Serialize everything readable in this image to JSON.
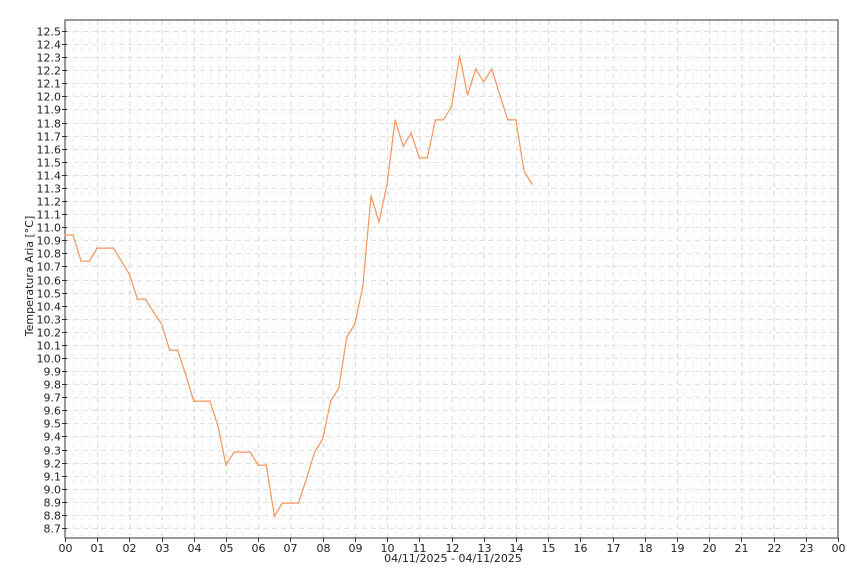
{
  "chart_data": {
    "type": "line",
    "title": "",
    "xlabel": "04/11/2025 - 04/11/2025",
    "ylabel": "Temperatura Aria [°C]",
    "ylim": [
      8.62,
      12.58
    ],
    "xlim": [
      "00:00",
      "24:00"
    ],
    "grid": true,
    "line_color": "#f5945c",
    "y_ticks": [
      "12.5",
      "12.4",
      "12.3",
      "12.2",
      "12.1",
      "12.0",
      "11.9",
      "11.8",
      "11.7",
      "11.6",
      "11.5",
      "11.4",
      "11.3",
      "11.2",
      "11.1",
      "11.0",
      "10.9",
      "10.8",
      "10.7",
      "10.6",
      "10.5",
      "10.4",
      "10.3",
      "10.2",
      "10.1",
      "10.0",
      "9.9",
      "9.8",
      "9.7",
      "9.6",
      "9.5",
      "9.4",
      "9.3",
      "9.2",
      "9.1",
      "9.0",
      "8.9",
      "8.8",
      "8.7"
    ],
    "x_ticks": [
      "00",
      "01",
      "02",
      "03",
      "04",
      "05",
      "06",
      "07",
      "08",
      "09",
      "10",
      "11",
      "12",
      "13",
      "14",
      "15",
      "16",
      "17",
      "18",
      "19",
      "20",
      "21",
      "22",
      "23",
      "00"
    ],
    "series": [
      {
        "x": [
          "00:00",
          "00:15",
          "00:30",
          "00:45",
          "01:00",
          "01:15",
          "01:30",
          "01:45",
          "02:00",
          "02:15",
          "02:30",
          "02:45",
          "03:00",
          "03:15",
          "03:30",
          "03:45",
          "04:00",
          "04:15",
          "04:30",
          "04:45",
          "05:00",
          "05:15",
          "05:30",
          "05:45",
          "06:00",
          "06:15",
          "06:30",
          "06:45",
          "07:00",
          "07:15",
          "07:30",
          "07:45",
          "08:00",
          "08:15",
          "08:30",
          "08:45",
          "09:00",
          "09:15",
          "09:30",
          "09:45",
          "10:00",
          "10:15",
          "10:30",
          "10:45",
          "11:00",
          "11:15",
          "11:30",
          "11:45",
          "12:00",
          "12:15",
          "12:30",
          "12:45",
          "13:00",
          "13:15",
          "13:30",
          "13:45",
          "14:00",
          "14:15",
          "14:30"
        ],
        "y": [
          10.94,
          10.94,
          10.74,
          10.74,
          10.84,
          10.84,
          10.84,
          10.74,
          10.64,
          10.45,
          10.45,
          10.35,
          10.26,
          10.06,
          10.06,
          9.87,
          9.67,
          9.67,
          9.67,
          9.48,
          9.18,
          9.28,
          9.28,
          9.28,
          9.18,
          9.18,
          8.79,
          8.89,
          8.89,
          8.89,
          9.08,
          9.28,
          9.38,
          9.67,
          9.77,
          10.16,
          10.26,
          10.55,
          11.24,
          11.04,
          11.33,
          11.82,
          11.62,
          11.72,
          11.53,
          11.53,
          11.82,
          11.82,
          11.92,
          12.31,
          12.01,
          12.21,
          12.11,
          12.21,
          12.01,
          11.82,
          11.82,
          11.43,
          11.33
        ]
      }
    ]
  }
}
